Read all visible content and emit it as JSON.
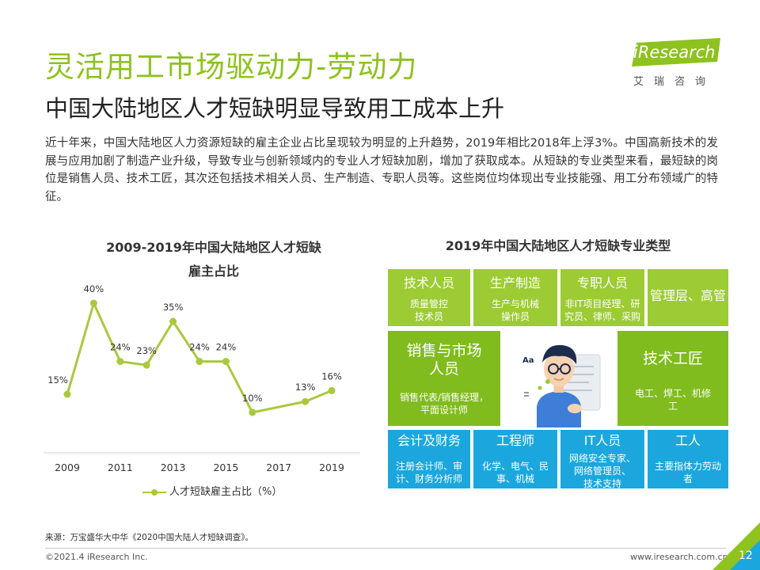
{
  "header": {
    "title": "灵活用工市场驱动力-劳动力",
    "subtitle": "中国大陆地区人才短缺明显导致用工成本上升"
  },
  "logo": {
    "brand": "iResearch",
    "cn": "艾瑞咨询",
    "colors": {
      "green": "#8dc21f"
    }
  },
  "intro": "近十年来，中国大陆地区人力资源短缺的雇主企业占比呈现较为明显的上升趋势，2019年相比2018年上浮3%。中国高新技术的发展与应用加剧了制造产业升级，导致专业与创新领域内的专业人才短缺加剧，增加了获取成本。从短缺的专业类型来看，最短缺的岗位是销售人员、技术工匠，其次还包括技术相关人员、生产制造、专职人员等。这些岗位均体现出专业技能强、用工分布领域广的特征。",
  "left_chart_title": {
    "line1": "2009-2019年中国大陆地区人才短缺",
    "line2": "雇主占比"
  },
  "chart_data": {
    "type": "line",
    "x": [
      2009,
      2010,
      2011,
      2012,
      2013,
      2014,
      2015,
      2016,
      2017,
      2018,
      2019
    ],
    "x_tick_labels": [
      "2009",
      "2011",
      "2013",
      "2015",
      "2017",
      "2019"
    ],
    "series": [
      {
        "name": "人才短缺雇主占比（%）",
        "values": [
          15,
          40,
          24,
          23,
          35,
          24,
          24,
          10,
          null,
          13,
          16
        ],
        "labels": [
          "15%",
          "40%",
          "24%",
          "23%",
          "35%",
          "24%",
          "24%",
          "10%",
          null,
          "13%",
          "16%"
        ],
        "color": "#a9c93d"
      }
    ],
    "ylim": [
      0,
      45
    ],
    "grid": false,
    "legend_position": "bottom"
  },
  "right_title": "2019年中国大陆地区人才短缺专业类型",
  "categories": {
    "sales_tech": {
      "title": "技术人员",
      "desc1": "质量管控",
      "desc2": "技术员"
    },
    "production": {
      "title": "生产制造",
      "desc1": "生产与机械",
      "desc2": "操作员"
    },
    "specialist": {
      "title": "专职人员",
      "desc1": "非IT项目经理、研",
      "desc2": "究员、律师、采购"
    },
    "management": {
      "title": "管理层、高管"
    },
    "sales": {
      "title1": "销售与市场",
      "title2": "人员",
      "desc1": "销售代表/销售经理，",
      "desc2": "平面设计师"
    },
    "craftsman": {
      "title": "技术工匠",
      "desc1": "电工、焊工、机修",
      "desc2": "工"
    },
    "accounting": {
      "title": "会计及财务",
      "desc1": "注册会计师、审",
      "desc2": "计、财务分析师"
    },
    "engineer": {
      "title": "工程师",
      "desc1": "化学、电气、民",
      "desc2": "事、机械"
    },
    "it": {
      "title": "IT人员",
      "desc1": "网络安全专家、",
      "desc2": "网络管理员、",
      "desc3": "技术支持"
    },
    "worker": {
      "title": "工人",
      "desc1": "主要指体力劳动",
      "desc2": "者"
    }
  },
  "illustration_text": "Aa",
  "footer": {
    "source": "来源：万宝盛华大中华《2020中国大陆人才短缺调查》。",
    "copyright": "©2021.4 iResearch Inc.",
    "website": "www.iresearch.com.cn",
    "page": "12"
  }
}
